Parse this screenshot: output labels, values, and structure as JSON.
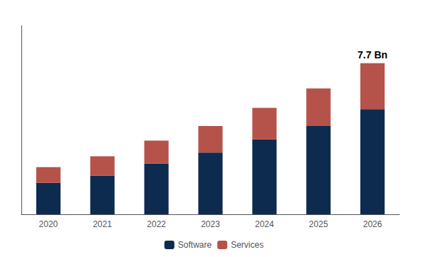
{
  "chart_data": {
    "type": "bar",
    "categories": [
      "2020",
      "2021",
      "2022",
      "2023",
      "2024",
      "2025",
      "2026"
    ],
    "series": [
      {
        "name": "Software",
        "color": "#0d2b4e",
        "values": [
          1.3,
          1.6,
          2.1,
          2.55,
          3.1,
          3.65,
          4.35
        ]
      },
      {
        "name": "Services",
        "color": "#b5534a",
        "values": [
          0.65,
          0.8,
          0.95,
          1.1,
          1.3,
          1.55,
          1.9
        ]
      }
    ],
    "stacked": true,
    "annotation": "7.7 Bn",
    "ylim": [
      0,
      7.8
    ],
    "tick_labels": "x",
    "grid": false,
    "legend": "bottom"
  }
}
